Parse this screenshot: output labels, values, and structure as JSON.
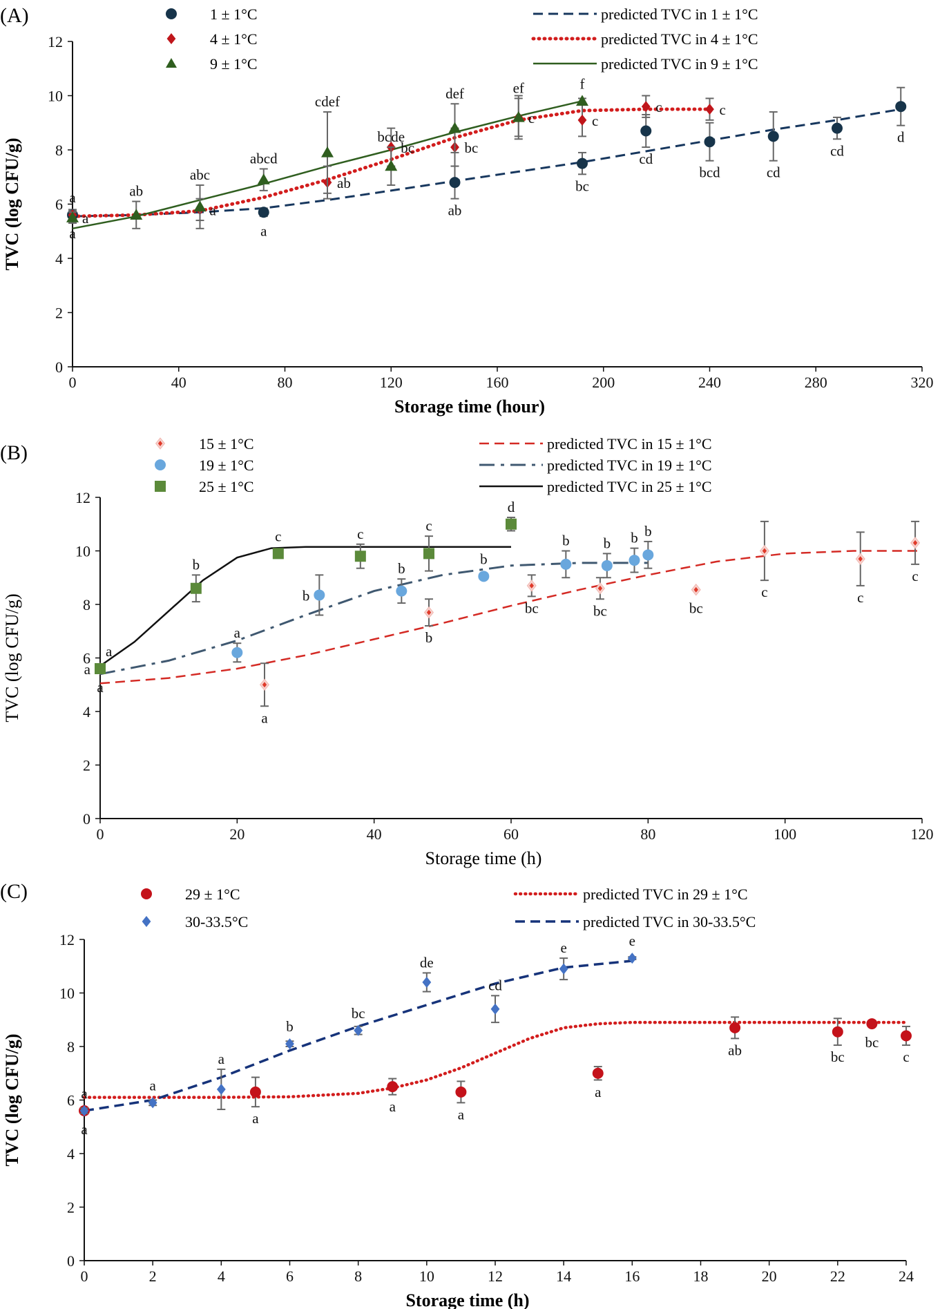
{
  "chart_data": [
    {
      "panel": "(A)",
      "type": "scatter",
      "xlabel": "Storage time (hour)",
      "ylabel": "TVC (log CFU/g)",
      "xlim": [
        0,
        320
      ],
      "ylim": [
        0,
        12
      ],
      "xticks": [
        0,
        40,
        80,
        120,
        160,
        200,
        240,
        280,
        320
      ],
      "yticks": [
        0,
        2,
        4,
        6,
        8,
        10,
        12
      ],
      "title_bold": true,
      "series": [
        {
          "name": "1 ± 1°C",
          "marker": "circle",
          "color": "#17344a",
          "points": [
            {
              "x": 0,
              "y": 5.6,
              "err": 0.2,
              "label": "a",
              "lpos": "below"
            },
            {
              "x": 72,
              "y": 5.7,
              "err": 0.15,
              "label": "a",
              "lpos": "below"
            },
            {
              "x": 144,
              "y": 6.8,
              "err": 0.6,
              "label": "ab",
              "lpos": "below"
            },
            {
              "x": 192,
              "y": 7.5,
              "err": 0.4,
              "label": "bc",
              "lpos": "below"
            },
            {
              "x": 216,
              "y": 8.7,
              "err": 0.6,
              "label": "cd",
              "lpos": "below"
            },
            {
              "x": 240,
              "y": 8.3,
              "err": 0.7,
              "label": "bcd",
              "lpos": "below"
            },
            {
              "x": 264,
              "y": 8.5,
              "err": 0.9,
              "label": "cd",
              "lpos": "below"
            },
            {
              "x": 288,
              "y": 8.8,
              "err": 0.4,
              "label": "cd",
              "lpos": "below"
            },
            {
              "x": 312,
              "y": 9.6,
              "err": 0.7,
              "label": "d",
              "lpos": "below"
            }
          ]
        },
        {
          "name": "4 ± 1°C",
          "marker": "diamond",
          "color": "#c0161b",
          "points": [
            {
              "x": 0,
              "y": 5.6,
              "err": 0.15,
              "label": "a",
              "lpos": "above"
            },
            {
              "x": 48,
              "y": 5.8,
              "err": 0.4,
              "label": "a",
              "lpos": "right"
            },
            {
              "x": 96,
              "y": 6.8,
              "err": 0.6,
              "label": "ab",
              "lpos": "right"
            },
            {
              "x": 120,
              "y": 8.1,
              "err": 0.7,
              "label": "bc",
              "lpos": "right"
            },
            {
              "x": 144,
              "y": 8.1,
              "err": 0.7,
              "label": "bc",
              "lpos": "right"
            },
            {
              "x": 168,
              "y": 9.2,
              "err": 0.8,
              "label": "c",
              "lpos": "right"
            },
            {
              "x": 192,
              "y": 9.1,
              "err": 0.6,
              "label": "c",
              "lpos": "right"
            },
            {
              "x": 216,
              "y": 9.6,
              "err": 0.4,
              "label": "c",
              "lpos": "right"
            },
            {
              "x": 240,
              "y": 9.5,
              "err": 0.4,
              "label": "c",
              "lpos": "right"
            }
          ]
        },
        {
          "name": "9 ± 1°C",
          "marker": "triangle",
          "color": "#2f5e1f",
          "points": [
            {
              "x": 0,
              "y": 5.5,
              "err": 0.2,
              "label": "a",
              "lpos": "right"
            },
            {
              "x": 24,
              "y": 5.6,
              "err": 0.5,
              "label": "ab",
              "lpos": "above"
            },
            {
              "x": 48,
              "y": 5.9,
              "err": 0.8,
              "label": "abc",
              "lpos": "above"
            },
            {
              "x": 72,
              "y": 6.9,
              "err": 0.4,
              "label": "abcd",
              "lpos": "above"
            },
            {
              "x": 96,
              "y": 7.9,
              "err": 1.5,
              "label": "cdef",
              "lpos": "above"
            },
            {
              "x": 120,
              "y": 7.4,
              "err": 0.7,
              "label": "bcde",
              "lpos": "above"
            },
            {
              "x": 144,
              "y": 8.8,
              "err": 0.9,
              "label": "def",
              "lpos": "above"
            },
            {
              "x": 168,
              "y": 9.2,
              "err": 0.7,
              "label": "ef",
              "lpos": "above"
            },
            {
              "x": 192,
              "y": 9.8,
              "err": 0.1,
              "label": "f",
              "lpos": "above"
            }
          ]
        }
      ],
      "curves": [
        {
          "name": "predicted TVC in 1 ± 1°C",
          "style": "dashed",
          "color": "#17375e",
          "width": 3,
          "x": [
            0,
            24,
            48,
            72,
            96,
            120,
            144,
            168,
            192,
            216,
            240,
            264,
            288,
            312
          ],
          "y": [
            5.55,
            5.6,
            5.7,
            5.85,
            6.15,
            6.5,
            6.85,
            7.2,
            7.55,
            7.95,
            8.35,
            8.75,
            9.1,
            9.5
          ]
        },
        {
          "name": "predicted TVC in 4 ± 1°C",
          "style": "dotted",
          "color": "#d21d1d",
          "width": 5,
          "x": [
            0,
            24,
            48,
            72,
            96,
            120,
            144,
            168,
            192,
            216,
            240
          ],
          "y": [
            5.55,
            5.6,
            5.75,
            6.25,
            6.9,
            7.65,
            8.45,
            9.1,
            9.45,
            9.5,
            9.5
          ]
        },
        {
          "name": "predicted TVC in 9 ± 1°C",
          "style": "solid",
          "color": "#2f5e1f",
          "width": 2.5,
          "x": [
            0,
            24,
            48,
            72,
            96,
            120,
            144,
            168,
            192
          ],
          "y": [
            5.1,
            5.55,
            6.15,
            6.75,
            7.4,
            8.0,
            8.65,
            9.25,
            9.8
          ]
        }
      ]
    },
    {
      "panel": "(B)",
      "type": "scatter",
      "xlabel": "Storage time (h)",
      "ylabel": "TVC (log CFU/g)",
      "xlim": [
        0,
        120
      ],
      "ylim": [
        0,
        12
      ],
      "xticks": [
        0,
        20,
        40,
        60,
        80,
        100,
        120
      ],
      "yticks": [
        0,
        2,
        4,
        6,
        8,
        10,
        12
      ],
      "title_bold": false,
      "series": [
        {
          "name": "15 ± 1°C",
          "marker": "diamond-hollow",
          "color": "#e03a2a",
          "points": [
            {
              "x": 0,
              "y": 5.6,
              "err": 0.1,
              "label": "a",
              "lpos": "below"
            },
            {
              "x": 24,
              "y": 5.0,
              "err": 0.8,
              "label": "a",
              "lpos": "below"
            },
            {
              "x": 48,
              "y": 7.7,
              "err": 0.5,
              "label": "b",
              "lpos": "below"
            },
            {
              "x": 63,
              "y": 8.7,
              "err": 0.4,
              "label": "bc",
              "lpos": "below"
            },
            {
              "x": 73,
              "y": 8.6,
              "err": 0.4,
              "label": "bc",
              "lpos": "below"
            },
            {
              "x": 87,
              "y": 8.55,
              "err": 0.0,
              "label": "bc",
              "lpos": "below"
            },
            {
              "x": 97,
              "y": 10.0,
              "err": 1.1,
              "label": "c",
              "lpos": "below"
            },
            {
              "x": 111,
              "y": 9.7,
              "err": 1.0,
              "label": "c",
              "lpos": "below"
            },
            {
              "x": 119,
              "y": 10.3,
              "err": 0.8,
              "label": "c",
              "lpos": "below"
            }
          ]
        },
        {
          "name": "19 ± 1°C",
          "marker": "circle",
          "color": "#69a7dd",
          "points": [
            {
              "x": 0,
              "y": 5.6,
              "err": 0.1,
              "label": "a",
              "lpos": "left"
            },
            {
              "x": 20,
              "y": 6.2,
              "err": 0.35,
              "label": "a",
              "lpos": "above"
            },
            {
              "x": 32,
              "y": 8.35,
              "err": 0.75,
              "label": "b",
              "lpos": "left"
            },
            {
              "x": 44,
              "y": 8.5,
              "err": 0.45,
              "label": "b",
              "lpos": "above"
            },
            {
              "x": 56,
              "y": 9.05,
              "err": 0.1,
              "label": "b",
              "lpos": "above"
            },
            {
              "x": 68,
              "y": 9.5,
              "err": 0.5,
              "label": "b",
              "lpos": "above"
            },
            {
              "x": 74,
              "y": 9.45,
              "err": 0.45,
              "label": "b",
              "lpos": "above"
            },
            {
              "x": 78,
              "y": 9.65,
              "err": 0.45,
              "label": "b",
              "lpos": "above"
            },
            {
              "x": 80,
              "y": 9.85,
              "err": 0.5,
              "label": "b",
              "lpos": "above"
            }
          ]
        },
        {
          "name": "25 ± 1°C",
          "marker": "square",
          "color": "#5b8a3a",
          "points": [
            {
              "x": 0,
              "y": 5.6,
              "err": 0.1,
              "label": "a",
              "lpos": "above-right"
            },
            {
              "x": 14,
              "y": 8.6,
              "err": 0.5,
              "label": "b",
              "lpos": "above"
            },
            {
              "x": 26,
              "y": 9.9,
              "err": 0.1,
              "label": "c",
              "lpos": "above"
            },
            {
              "x": 38,
              "y": 9.8,
              "err": 0.45,
              "label": "c",
              "lpos": "above"
            },
            {
              "x": 48,
              "y": 9.9,
              "err": 0.65,
              "label": "c",
              "lpos": "above"
            },
            {
              "x": 60,
              "y": 11.0,
              "err": 0.25,
              "label": "d",
              "lpos": "above"
            }
          ]
        }
      ],
      "curves": [
        {
          "name": "predicted TVC in 15 ± 1°C",
          "style": "dashed",
          "color": "#d42a24",
          "width": 2.5,
          "x": [
            0,
            10,
            20,
            30,
            40,
            50,
            60,
            70,
            80,
            90,
            100,
            110,
            120
          ],
          "y": [
            5.05,
            5.25,
            5.6,
            6.1,
            6.7,
            7.3,
            7.95,
            8.55,
            9.1,
            9.6,
            9.9,
            10.0,
            10.0
          ]
        },
        {
          "name": "predicted TVC in 19 ± 1°C",
          "style": "dashdot",
          "color": "#3f5870",
          "width": 3,
          "x": [
            0,
            10,
            20,
            30,
            40,
            50,
            60,
            70,
            80
          ],
          "y": [
            5.4,
            5.9,
            6.65,
            7.6,
            8.5,
            9.1,
            9.45,
            9.55,
            9.55
          ]
        },
        {
          "name": "predicted TVC in 25 ± 1°C",
          "style": "solid",
          "color": "#111111",
          "width": 2.5,
          "x": [
            0,
            5,
            10,
            15,
            20,
            25,
            30,
            40,
            50,
            60
          ],
          "y": [
            5.7,
            6.6,
            7.75,
            8.9,
            9.75,
            10.1,
            10.15,
            10.15,
            10.15,
            10.15
          ]
        }
      ]
    },
    {
      "panel": "(C)",
      "type": "scatter",
      "xlabel": "Storage time (h)",
      "ylabel": "TVC (log CFU/g)",
      "xlim": [
        0,
        24
      ],
      "ylim": [
        0,
        12
      ],
      "xticks": [
        0,
        2,
        4,
        6,
        8,
        10,
        12,
        14,
        16,
        18,
        20,
        22,
        24
      ],
      "yticks": [
        0,
        2,
        4,
        6,
        8,
        10,
        12
      ],
      "title_bold": true,
      "series": [
        {
          "name": "29 ± 1°C",
          "marker": "circle",
          "color": "#c4121a",
          "points": [
            {
              "x": 0,
              "y": 5.6,
              "err": 0.1,
              "label": "a",
              "lpos": "below"
            },
            {
              "x": 5,
              "y": 6.3,
              "err": 0.55,
              "label": "a",
              "lpos": "below"
            },
            {
              "x": 9,
              "y": 6.5,
              "err": 0.3,
              "label": "a",
              "lpos": "below"
            },
            {
              "x": 11,
              "y": 6.3,
              "err": 0.4,
              "label": "a",
              "lpos": "below"
            },
            {
              "x": 15,
              "y": 7.0,
              "err": 0.25,
              "label": "a",
              "lpos": "below"
            },
            {
              "x": 19,
              "y": 8.7,
              "err": 0.4,
              "label": "ab",
              "lpos": "below"
            },
            {
              "x": 22,
              "y": 8.55,
              "err": 0.5,
              "label": "bc",
              "lpos": "below"
            },
            {
              "x": 23,
              "y": 8.85,
              "err": 0.1,
              "label": "bc",
              "lpos": "below"
            },
            {
              "x": 24,
              "y": 8.4,
              "err": 0.35,
              "label": "c",
              "lpos": "below"
            }
          ]
        },
        {
          "name": "30-33.5°C",
          "marker": "diamond",
          "color": "#4472c4",
          "points": [
            {
              "x": 0,
              "y": 5.6,
              "err": 0.1,
              "label": "a",
              "lpos": "above"
            },
            {
              "x": 2,
              "y": 5.9,
              "err": 0.1,
              "label": "a",
              "lpos": "above"
            },
            {
              "x": 4,
              "y": 6.4,
              "err": 0.75,
              "label": "a",
              "lpos": "above"
            },
            {
              "x": 6,
              "y": 8.1,
              "err": 0.1,
              "label": "b",
              "lpos": "above"
            },
            {
              "x": 8,
              "y": 8.6,
              "err": 0.15,
              "label": "bc",
              "lpos": "above"
            },
            {
              "x": 10,
              "y": 10.4,
              "err": 0.35,
              "label": "de",
              "lpos": "above"
            },
            {
              "x": 12,
              "y": 9.4,
              "err": 0.5,
              "label": "cd",
              "lpos": "above"
            },
            {
              "x": 14,
              "y": 10.9,
              "err": 0.4,
              "label": "e",
              "lpos": "above"
            },
            {
              "x": 16,
              "y": 11.3,
              "err": 0.05,
              "label": "e",
              "lpos": "above"
            }
          ]
        }
      ],
      "curves": [
        {
          "name": "predicted TVC in 29 ± 1°C",
          "style": "dotted",
          "color": "#d21d1d",
          "width": 4.5,
          "x": [
            0,
            2,
            4,
            6,
            8,
            9,
            10,
            11,
            12,
            13,
            14,
            15,
            16,
            18,
            20,
            22,
            24
          ],
          "y": [
            6.1,
            6.1,
            6.1,
            6.12,
            6.25,
            6.45,
            6.75,
            7.2,
            7.75,
            8.3,
            8.7,
            8.85,
            8.9,
            8.9,
            8.9,
            8.9,
            8.9
          ]
        },
        {
          "name": "predicted TVC in 30-33.5°C",
          "style": "dashed",
          "color": "#16337a",
          "width": 3.5,
          "x": [
            0,
            2,
            4,
            6,
            8,
            10,
            12,
            14,
            16
          ],
          "y": [
            5.6,
            6.0,
            6.85,
            7.85,
            8.75,
            9.55,
            10.35,
            10.95,
            11.2
          ]
        }
      ]
    }
  ]
}
